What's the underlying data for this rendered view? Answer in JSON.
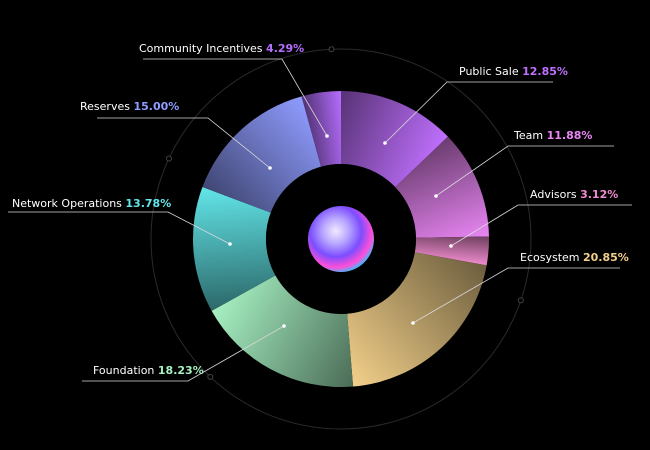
{
  "chart_data": {
    "type": "pie",
    "style": "donut",
    "title": "",
    "categories": [
      "Public Sale",
      "Team",
      "Advisors",
      "Ecosystem",
      "Foundation",
      "Network Operations",
      "Reserves",
      "Community Incentives"
    ],
    "values": [
      12.85,
      11.88,
      3.12,
      20.85,
      18.23,
      13.78,
      15.0,
      4.29
    ],
    "labels": [
      {
        "name": "Public Sale",
        "value_text": "12.85%",
        "color": "#c070ff"
      },
      {
        "name": "Team",
        "value_text": "11.88%",
        "color": "#ea86f5"
      },
      {
        "name": "Advisors",
        "value_text": "3.12%",
        "color": "#f08ccf"
      },
      {
        "name": "Ecosystem",
        "value_text": "20.85%",
        "color": "#f3d08a"
      },
      {
        "name": "Foundation",
        "value_text": "18.23%",
        "color": "#a6f0c2"
      },
      {
        "name": "Network Operations",
        "value_text": "13.78%",
        "color": "#62e6e9"
      },
      {
        "name": "Reserves",
        "value_text": "15.00%",
        "color": "#8f9cff"
      },
      {
        "name": "Community Incentives",
        "value_text": "4.29%",
        "color": "#b66eff"
      }
    ],
    "legend": "none"
  },
  "colors": {
    "background": "#000000",
    "label_text": "#ffffff",
    "leader_line": "#d8d8d8",
    "outer_ring": "#2a2a2a"
  }
}
